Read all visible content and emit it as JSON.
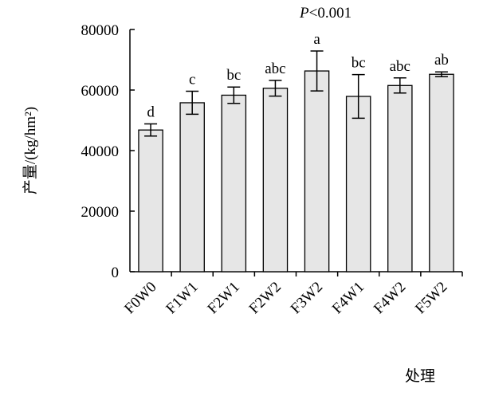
{
  "chart_data": {
    "type": "bar",
    "categories": [
      "F0W0",
      "F1W1",
      "F2W1",
      "F2W2",
      "F3W2",
      "F4W1",
      "F4W2",
      "F5W2"
    ],
    "values": [
      46800,
      55800,
      58300,
      60600,
      66300,
      57900,
      61500,
      65200
    ],
    "error": [
      2000,
      3800,
      2700,
      2600,
      6600,
      7200,
      2500,
      800
    ],
    "significance": [
      "d",
      "c",
      "bc",
      "abc",
      "a",
      "bc",
      "abc",
      "ab"
    ],
    "ylabel": "产量/(kg/hm²)",
    "xlabel": "处理",
    "yticks": [
      0,
      20000,
      40000,
      60000,
      80000
    ],
    "ylim": [
      0,
      80000
    ],
    "annotation_italic": "P",
    "annotation_rest": "<0.001",
    "bar_color": "#e6e6e6",
    "grid": false
  }
}
